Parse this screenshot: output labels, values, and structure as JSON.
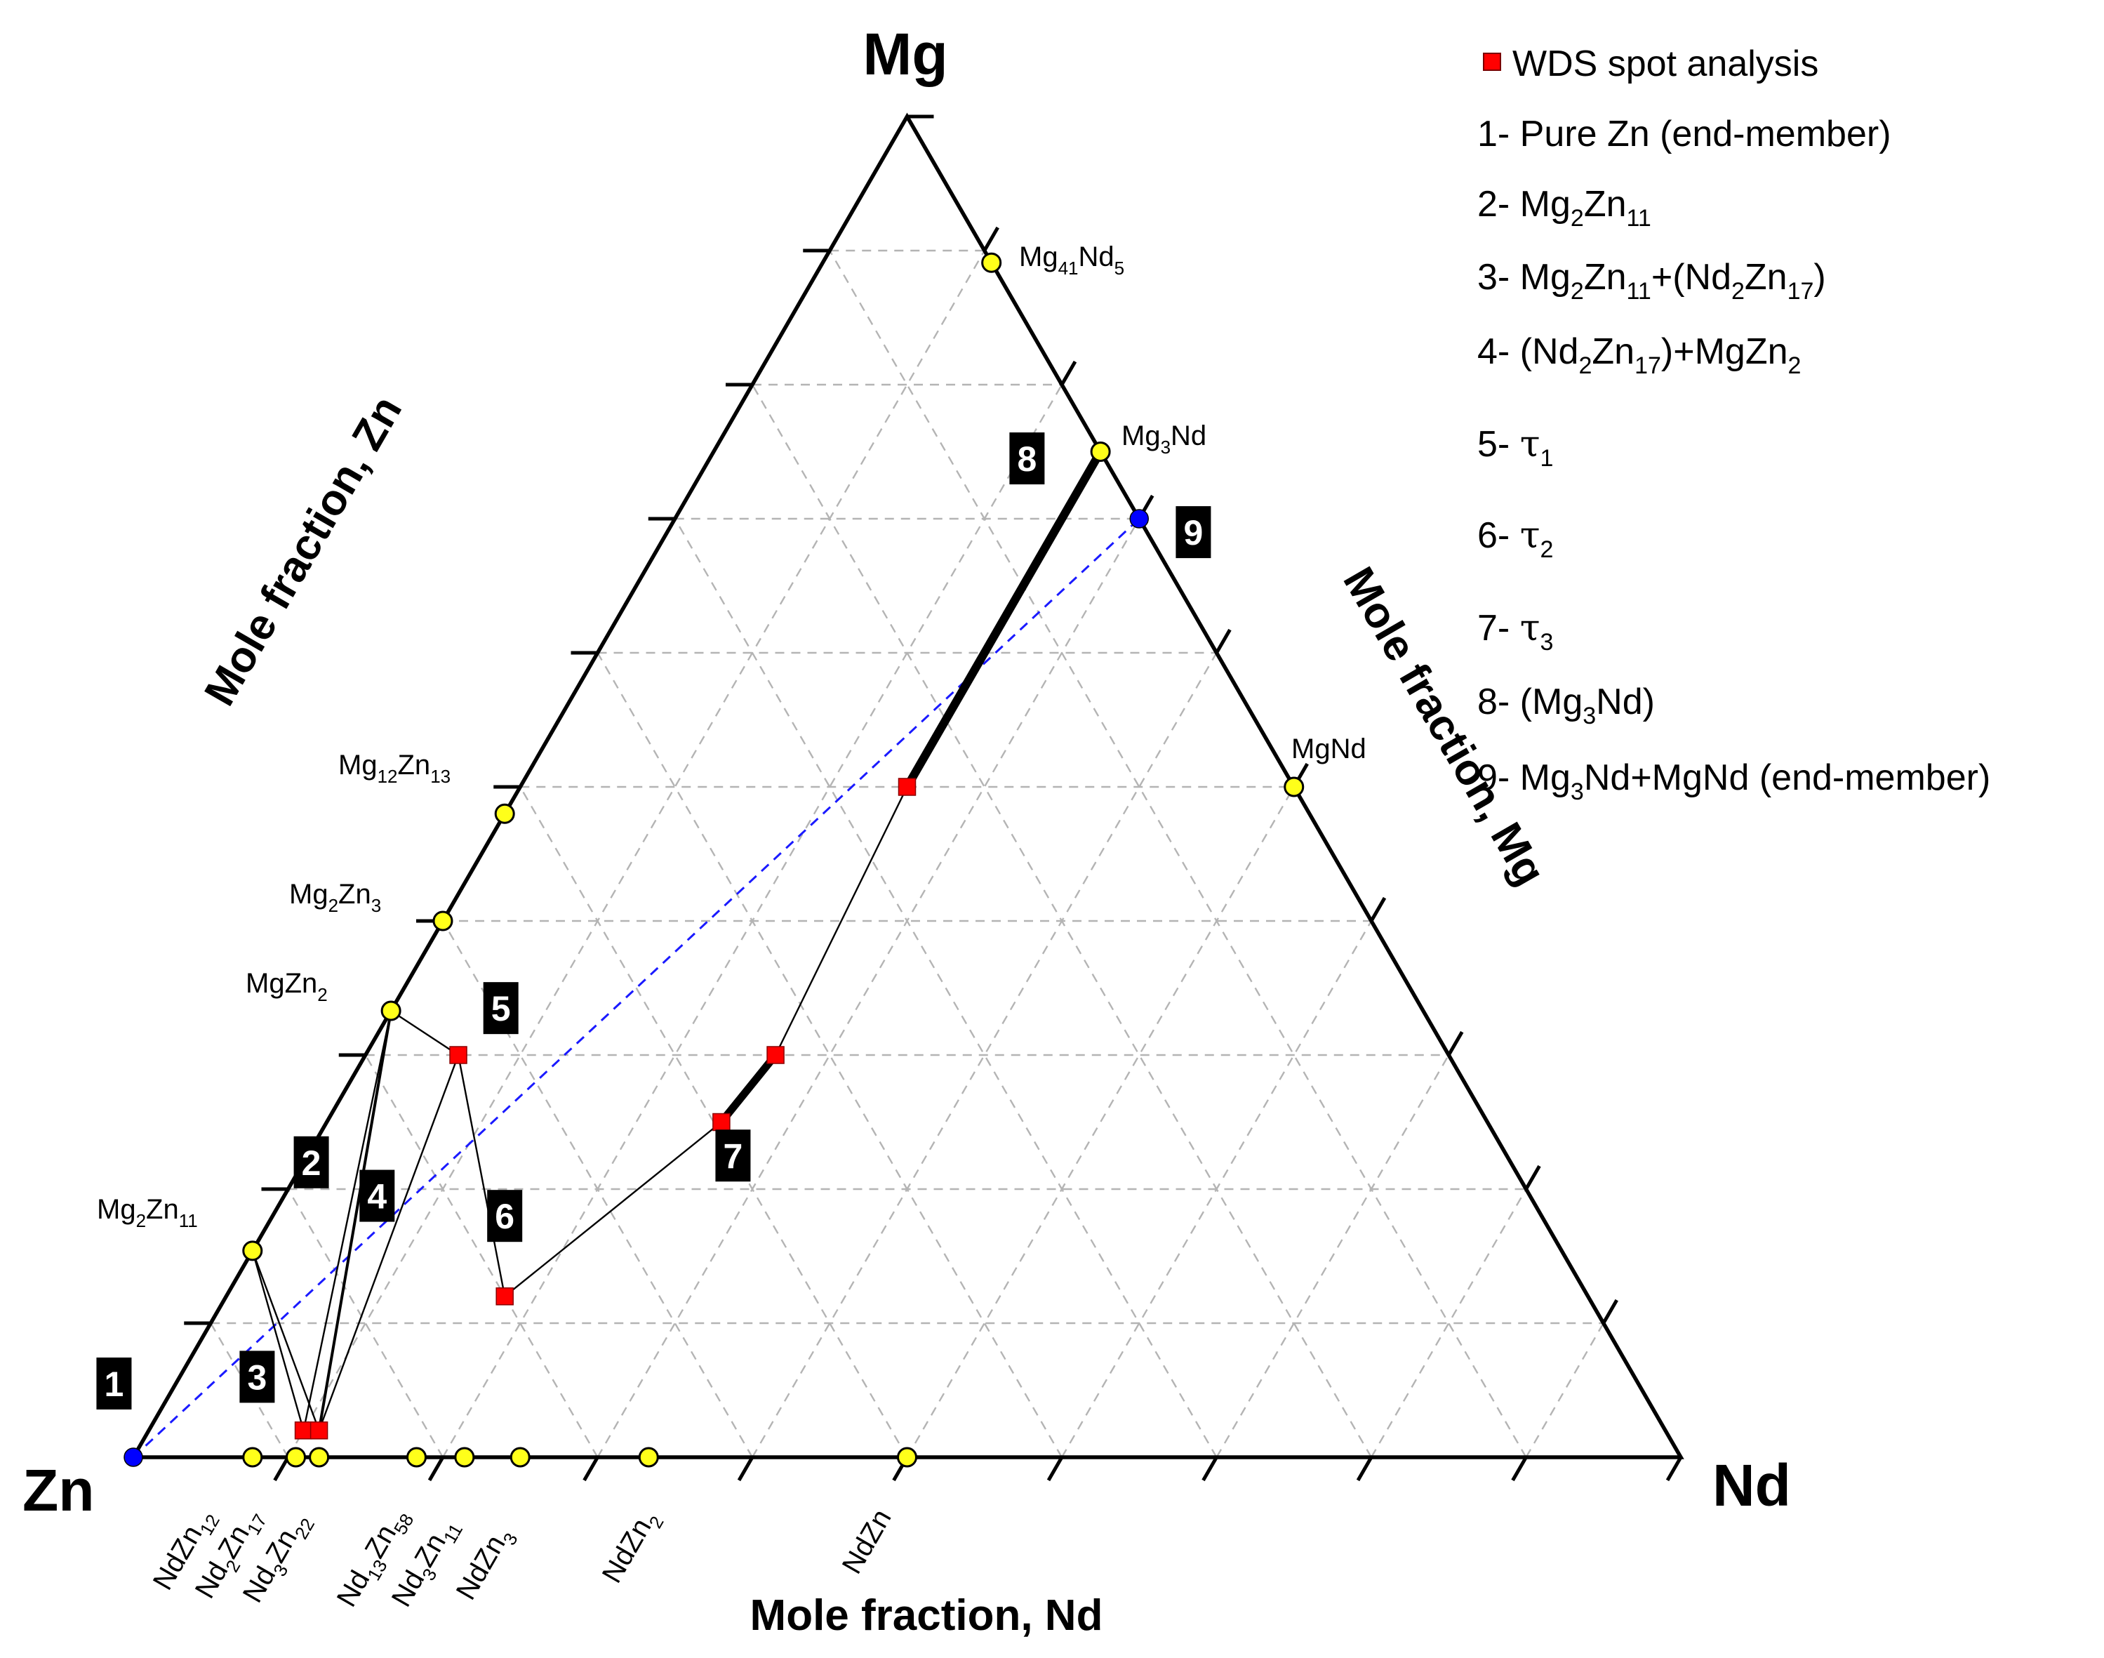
{
  "chart_data": {
    "type": "ternary",
    "corners": {
      "top": "Mg",
      "left": "Zn",
      "right": "Nd"
    },
    "axis_titles": {
      "left": "Mole fraction, Zn",
      "right": "Mole fraction, Mg",
      "bottom": "Mole fraction, Nd"
    },
    "grid": true,
    "grid_step": 0.1,
    "compounds": [
      {
        "id": "mg41nd5",
        "parts": [
          [
            "Mg",
            ""
          ],
          [
            "41",
            "sub"
          ],
          [
            "Nd",
            ""
          ],
          [
            "5",
            "sub"
          ]
        ],
        "Mg": 0.891,
        "Nd": 0.109,
        "Zn": 0.0
      },
      {
        "id": "mg3nd",
        "parts": [
          [
            "Mg",
            ""
          ],
          [
            "3",
            "sub"
          ],
          [
            "Nd",
            ""
          ]
        ],
        "Mg": 0.75,
        "Nd": 0.25,
        "Zn": 0.0
      },
      {
        "id": "mgnd",
        "parts": [
          [
            "MgNd",
            ""
          ]
        ],
        "Mg": 0.5,
        "Nd": 0.5,
        "Zn": 0.0
      },
      {
        "id": "mg12zn13",
        "parts": [
          [
            "Mg",
            ""
          ],
          [
            "12",
            "sub"
          ],
          [
            "Zn",
            ""
          ],
          [
            "13",
            "sub"
          ]
        ],
        "Mg": 0.48,
        "Nd": 0.0,
        "Zn": 0.52
      },
      {
        "id": "mg2zn3",
        "parts": [
          [
            "Mg",
            ""
          ],
          [
            "2",
            "sub"
          ],
          [
            "Zn",
            ""
          ],
          [
            "3",
            "sub"
          ]
        ],
        "Mg": 0.4,
        "Nd": 0.0,
        "Zn": 0.6
      },
      {
        "id": "mgzn2",
        "parts": [
          [
            "MgZn",
            ""
          ],
          [
            "2",
            "sub"
          ]
        ],
        "Mg": 0.333,
        "Nd": 0.0,
        "Zn": 0.667
      },
      {
        "id": "mg2zn11",
        "parts": [
          [
            "Mg",
            ""
          ],
          [
            "2",
            "sub"
          ],
          [
            "Zn",
            ""
          ],
          [
            "11",
            "sub"
          ]
        ],
        "Mg": 0.154,
        "Nd": 0.0,
        "Zn": 0.846
      },
      {
        "id": "ndzn12",
        "parts": [
          [
            "NdZn",
            ""
          ],
          [
            "12",
            "sub"
          ]
        ],
        "Mg": 0.0,
        "Nd": 0.077,
        "Zn": 0.923
      },
      {
        "id": "nd2zn17",
        "parts": [
          [
            "Nd",
            ""
          ],
          [
            "2",
            "sub"
          ],
          [
            "Zn",
            ""
          ],
          [
            "17",
            "sub"
          ]
        ],
        "Mg": 0.0,
        "Nd": 0.105,
        "Zn": 0.895
      },
      {
        "id": "nd3zn22",
        "parts": [
          [
            "Nd",
            ""
          ],
          [
            "3",
            "sub"
          ],
          [
            "Zn",
            ""
          ],
          [
            "22",
            "sub"
          ]
        ],
        "Mg": 0.0,
        "Nd": 0.12,
        "Zn": 0.88
      },
      {
        "id": "nd13zn58",
        "parts": [
          [
            "Nd",
            ""
          ],
          [
            "13",
            "sub"
          ],
          [
            "Zn",
            ""
          ],
          [
            "58",
            "sub"
          ]
        ],
        "Mg": 0.0,
        "Nd": 0.183,
        "Zn": 0.817
      },
      {
        "id": "nd3zn11",
        "parts": [
          [
            "Nd",
            ""
          ],
          [
            "3",
            "sub"
          ],
          [
            "Zn",
            ""
          ],
          [
            "11",
            "sub"
          ]
        ],
        "Mg": 0.0,
        "Nd": 0.214,
        "Zn": 0.786
      },
      {
        "id": "ndzn3",
        "parts": [
          [
            "NdZn",
            ""
          ],
          [
            "3",
            "sub"
          ]
        ],
        "Mg": 0.0,
        "Nd": 0.25,
        "Zn": 0.75
      },
      {
        "id": "ndzn2",
        "parts": [
          [
            "NdZn",
            ""
          ],
          [
            "2",
            "sub"
          ]
        ],
        "Mg": 0.0,
        "Nd": 0.333,
        "Zn": 0.667
      },
      {
        "id": "ndzn",
        "parts": [
          [
            "NdZn",
            ""
          ]
        ],
        "Mg": 0.0,
        "Nd": 0.5,
        "Zn": 0.5
      }
    ],
    "wds_points": [
      {
        "id": "s2",
        "Mg": 0.02,
        "Nd": 0.1,
        "Zn": 0.88
      },
      {
        "id": "s4",
        "Mg": 0.02,
        "Nd": 0.11,
        "Zn": 0.87
      },
      {
        "id": "s5",
        "Mg": 0.3,
        "Nd": 0.06,
        "Zn": 0.64
      },
      {
        "id": "s6",
        "Mg": 0.12,
        "Nd": 0.18,
        "Zn": 0.7
      },
      {
        "id": "s7a",
        "Mg": 0.25,
        "Nd": 0.255,
        "Zn": 0.495
      },
      {
        "id": "s7b",
        "Mg": 0.3,
        "Nd": 0.265,
        "Zn": 0.435
      },
      {
        "id": "s8",
        "Mg": 0.5,
        "Nd": 0.25,
        "Zn": 0.25
      }
    ],
    "end_members": [
      {
        "id": "zn",
        "Mg": 0.0,
        "Nd": 0.0,
        "Zn": 1.0
      },
      {
        "id": "mg3nd_mgnd",
        "Mg": 0.7,
        "Nd": 0.3,
        "Zn": 0.0
      }
    ],
    "tie_lines": [
      {
        "from": {
          "Mg": 0.154,
          "Nd": 0.0
        },
        "to": {
          "Mg": 0.02,
          "Nd": 0.1
        },
        "weight": "thin"
      },
      {
        "from": {
          "Mg": 0.154,
          "Nd": 0.0
        },
        "to": {
          "Mg": 0.02,
          "Nd": 0.11
        },
        "weight": "thin"
      },
      {
        "from": {
          "Mg": 0.333,
          "Nd": 0.0
        },
        "to": {
          "Mg": 0.02,
          "Nd": 0.11
        },
        "weight": "medium"
      },
      {
        "from": {
          "Mg": 0.333,
          "Nd": 0.0
        },
        "to": {
          "Mg": 0.02,
          "Nd": 0.1
        },
        "weight": "thin"
      },
      {
        "from": {
          "Mg": 0.333,
          "Nd": 0.0
        },
        "to": {
          "Mg": 0.3,
          "Nd": 0.06
        },
        "weight": "thin"
      },
      {
        "from": {
          "Mg": 0.3,
          "Nd": 0.06
        },
        "to": {
          "Mg": 0.12,
          "Nd": 0.18
        },
        "weight": "thin"
      },
      {
        "from": {
          "Mg": 0.3,
          "Nd": 0.06
        },
        "to": {
          "Mg": 0.02,
          "Nd": 0.11
        },
        "weight": "thin"
      },
      {
        "from": {
          "Mg": 0.12,
          "Nd": 0.18
        },
        "to": {
          "Mg": 0.25,
          "Nd": 0.255
        },
        "weight": "thin"
      },
      {
        "from": {
          "Mg": 0.25,
          "Nd": 0.255
        },
        "to": {
          "Mg": 0.3,
          "Nd": 0.265
        },
        "weight": "thick"
      },
      {
        "from": {
          "Mg": 0.3,
          "Nd": 0.265
        },
        "to": {
          "Mg": 0.5,
          "Nd": 0.25
        },
        "weight": "thin"
      },
      {
        "from": {
          "Mg": 0.5,
          "Nd": 0.25
        },
        "to": {
          "Mg": 0.75,
          "Nd": 0.25
        },
        "weight": "heavy"
      }
    ],
    "dashed_line": {
      "from": {
        "Mg": 0.0,
        "Nd": 0.0
      },
      "to": {
        "Mg": 0.7,
        "Nd": 0.3
      },
      "color": "#1a1aff"
    },
    "region_labels": [
      {
        "text": "1",
        "Mg": 0.055,
        "Nd": -0.04
      },
      {
        "text": "2",
        "Mg": 0.22,
        "Nd": 0.005
      },
      {
        "text": "3",
        "Mg": 0.06,
        "Nd": 0.05
      },
      {
        "text": "4",
        "Mg": 0.195,
        "Nd": 0.06
      },
      {
        "text": "5",
        "Mg": 0.335,
        "Nd": 0.07
      },
      {
        "text": "6",
        "Mg": 0.18,
        "Nd": 0.15
      },
      {
        "text": "7",
        "Mg": 0.225,
        "Nd": 0.275
      },
      {
        "text": "8",
        "Mg": 0.745,
        "Nd": 0.205
      },
      {
        "text": "9",
        "Mg": 0.69,
        "Nd": 0.34
      }
    ],
    "legend": {
      "title": "WDS spot analysis",
      "position": "top-right",
      "entries": [
        {
          "parts": [
            [
              "1- Pure Zn (end-member)",
              ""
            ]
          ]
        },
        {
          "parts": [
            [
              "2- Mg",
              ""
            ],
            [
              "2",
              "sub"
            ],
            [
              "Zn",
              ""
            ],
            [
              "11",
              "sub"
            ]
          ]
        },
        {
          "parts": [
            [
              "3- Mg",
              ""
            ],
            [
              "2",
              "sub"
            ],
            [
              "Zn",
              ""
            ],
            [
              "11",
              "sub"
            ],
            [
              "+(Nd",
              ""
            ],
            [
              "2",
              "sub"
            ],
            [
              "Zn",
              ""
            ],
            [
              "17",
              "sub"
            ],
            [
              ")",
              ""
            ]
          ]
        },
        {
          "parts": [
            [
              "4- (Nd",
              ""
            ],
            [
              "2",
              "sub"
            ],
            [
              "Zn",
              ""
            ],
            [
              "17",
              "sub"
            ],
            [
              ")+MgZn",
              ""
            ],
            [
              "2",
              "sub"
            ]
          ]
        },
        {
          "parts": [
            [
              "5- ",
              ""
            ],
            [
              "τ",
              "tau"
            ],
            [
              "1",
              "sub"
            ]
          ]
        },
        {
          "parts": [
            [
              "6- ",
              ""
            ],
            [
              "τ",
              "tau"
            ],
            [
              "2",
              "sub"
            ]
          ]
        },
        {
          "parts": [
            [
              "7- ",
              ""
            ],
            [
              "τ",
              "tau"
            ],
            [
              "3",
              "sub"
            ]
          ]
        },
        {
          "parts": [
            [
              "8- (Mg",
              ""
            ],
            [
              "3",
              "sub"
            ],
            [
              "Nd)",
              ""
            ]
          ]
        },
        {
          "parts": [
            [
              "9- Mg",
              ""
            ],
            [
              "3",
              "sub"
            ],
            [
              "Nd+MgNd (end-member)",
              ""
            ]
          ]
        }
      ]
    },
    "colors": {
      "frame": "#000000",
      "grid": "#b4b4b4",
      "compound_fill": "#ffff1a",
      "wds_fill": "#ff0000",
      "end_member_fill": "#0000ff",
      "badge_fill": "#000000",
      "badge_text": "#ffffff"
    }
  }
}
